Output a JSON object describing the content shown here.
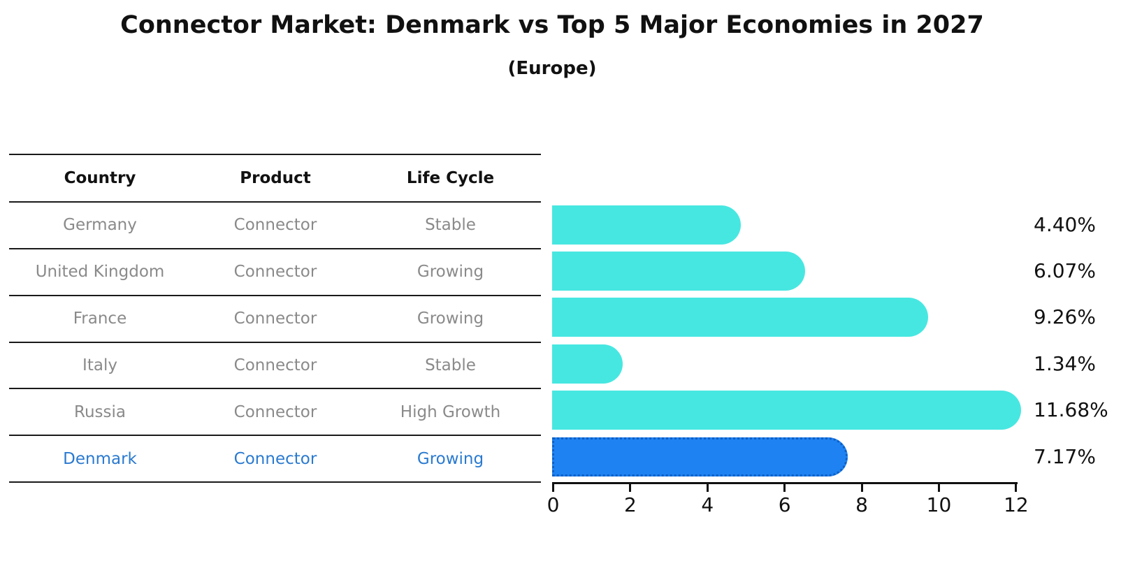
{
  "title": "Connector Market: Denmark vs Top 5 Major Economies in 2027",
  "subtitle": "(Europe)",
  "table": {
    "headers": [
      "Country",
      "Product",
      "Life Cycle"
    ],
    "rows": [
      {
        "country": "Germany",
        "product": "Connector",
        "life_cycle": "Stable"
      },
      {
        "country": "United Kingdom",
        "product": "Connector",
        "life_cycle": "Growing"
      },
      {
        "country": "France",
        "product": "Connector",
        "life_cycle": "Growing"
      },
      {
        "country": "Italy",
        "product": "Connector",
        "life_cycle": "Stable"
      },
      {
        "country": "Russia",
        "product": "Connector",
        "life_cycle": "High Growth"
      },
      {
        "country": "Denmark",
        "product": "Connector",
        "life_cycle": "Growing"
      }
    ],
    "highlighted_country": "Denmark"
  },
  "chart_data": {
    "type": "bar",
    "orientation": "horizontal",
    "title": "Connector Market: Denmark vs Top 5 Major Economies in 2027",
    "subtitle": "(Europe)",
    "categories": [
      "Germany",
      "United Kingdom",
      "France",
      "Italy",
      "Russia",
      "Denmark"
    ],
    "values": [
      4.4,
      6.07,
      9.26,
      1.34,
      11.68,
      7.17
    ],
    "value_labels": [
      "4.40%",
      "6.07%",
      "9.26%",
      "1.34%",
      "11.68%",
      "7.17%"
    ],
    "x_ticks": [
      "0",
      "2",
      "4",
      "6",
      "8",
      "10",
      "12"
    ],
    "xlim": [
      0,
      12
    ],
    "grid": false,
    "legend": null,
    "highlight_index": 5,
    "colors": {
      "bar": "#47E7E1",
      "highlight_bar": "#1E82F2",
      "highlight_bar_border": "#0E5FC4",
      "highlight_text": "#2A7AD0",
      "table_text": "#8A8A8A",
      "header_text": "#111111",
      "axis": "#111111"
    }
  }
}
